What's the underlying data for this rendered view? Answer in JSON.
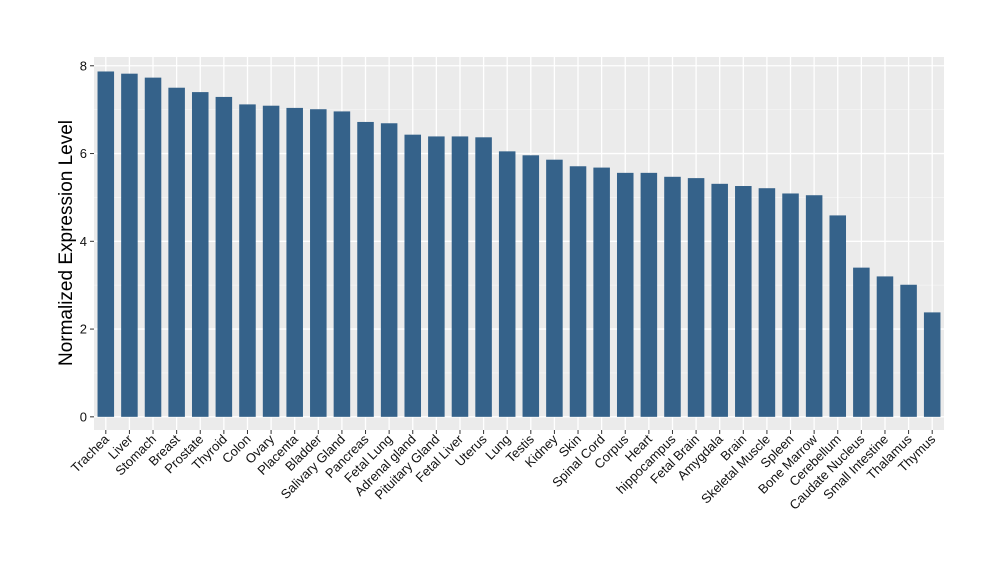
{
  "chart_data": {
    "type": "bar",
    "title": "",
    "xlabel": "",
    "ylabel": "Normalized Expression Level",
    "ylim": [
      -0.3,
      8.2
    ],
    "yticks": [
      0,
      2,
      4,
      6,
      8
    ],
    "grid": true,
    "legend": "none",
    "categories": [
      "Trachea",
      "Liver",
      "Stomach",
      "Breast",
      "Prostate",
      "Thyroid",
      "Colon",
      "Ovary",
      "Placenta",
      "Bladder",
      "Salivary Gland",
      "Pancreas",
      "Fetal Lung",
      "Adrenal gland",
      "Pituitary Gland",
      "Fetal Liver",
      "Uterus",
      "Lung",
      "Testis",
      "Kidney",
      "Skin",
      "Spinal Cord",
      "Corpus",
      "Heart",
      "hippocampus",
      "Fetal Brain",
      "Amygdala",
      "Brain",
      "Skeletal Muscle",
      "Spleen",
      "Bone Marrow",
      "Cerebellum",
      "Caudate Nucleus",
      "Small Intestine",
      "Thalamus",
      "Thymus"
    ],
    "values": [
      7.87,
      7.82,
      7.73,
      7.5,
      7.4,
      7.29,
      7.12,
      7.09,
      7.04,
      7.01,
      6.96,
      6.72,
      6.69,
      6.43,
      6.39,
      6.39,
      6.37,
      6.05,
      5.96,
      5.86,
      5.71,
      5.68,
      5.56,
      5.56,
      5.47,
      5.44,
      5.31,
      5.26,
      5.21,
      5.09,
      5.05,
      4.59,
      3.4,
      3.2,
      3.01,
      2.38
    ],
    "colors": {
      "bar": "#35628A",
      "panel_background": "#EBEBEB",
      "grid_major": "#FFFFFF",
      "grid_minor": "#F4F4F4"
    }
  }
}
